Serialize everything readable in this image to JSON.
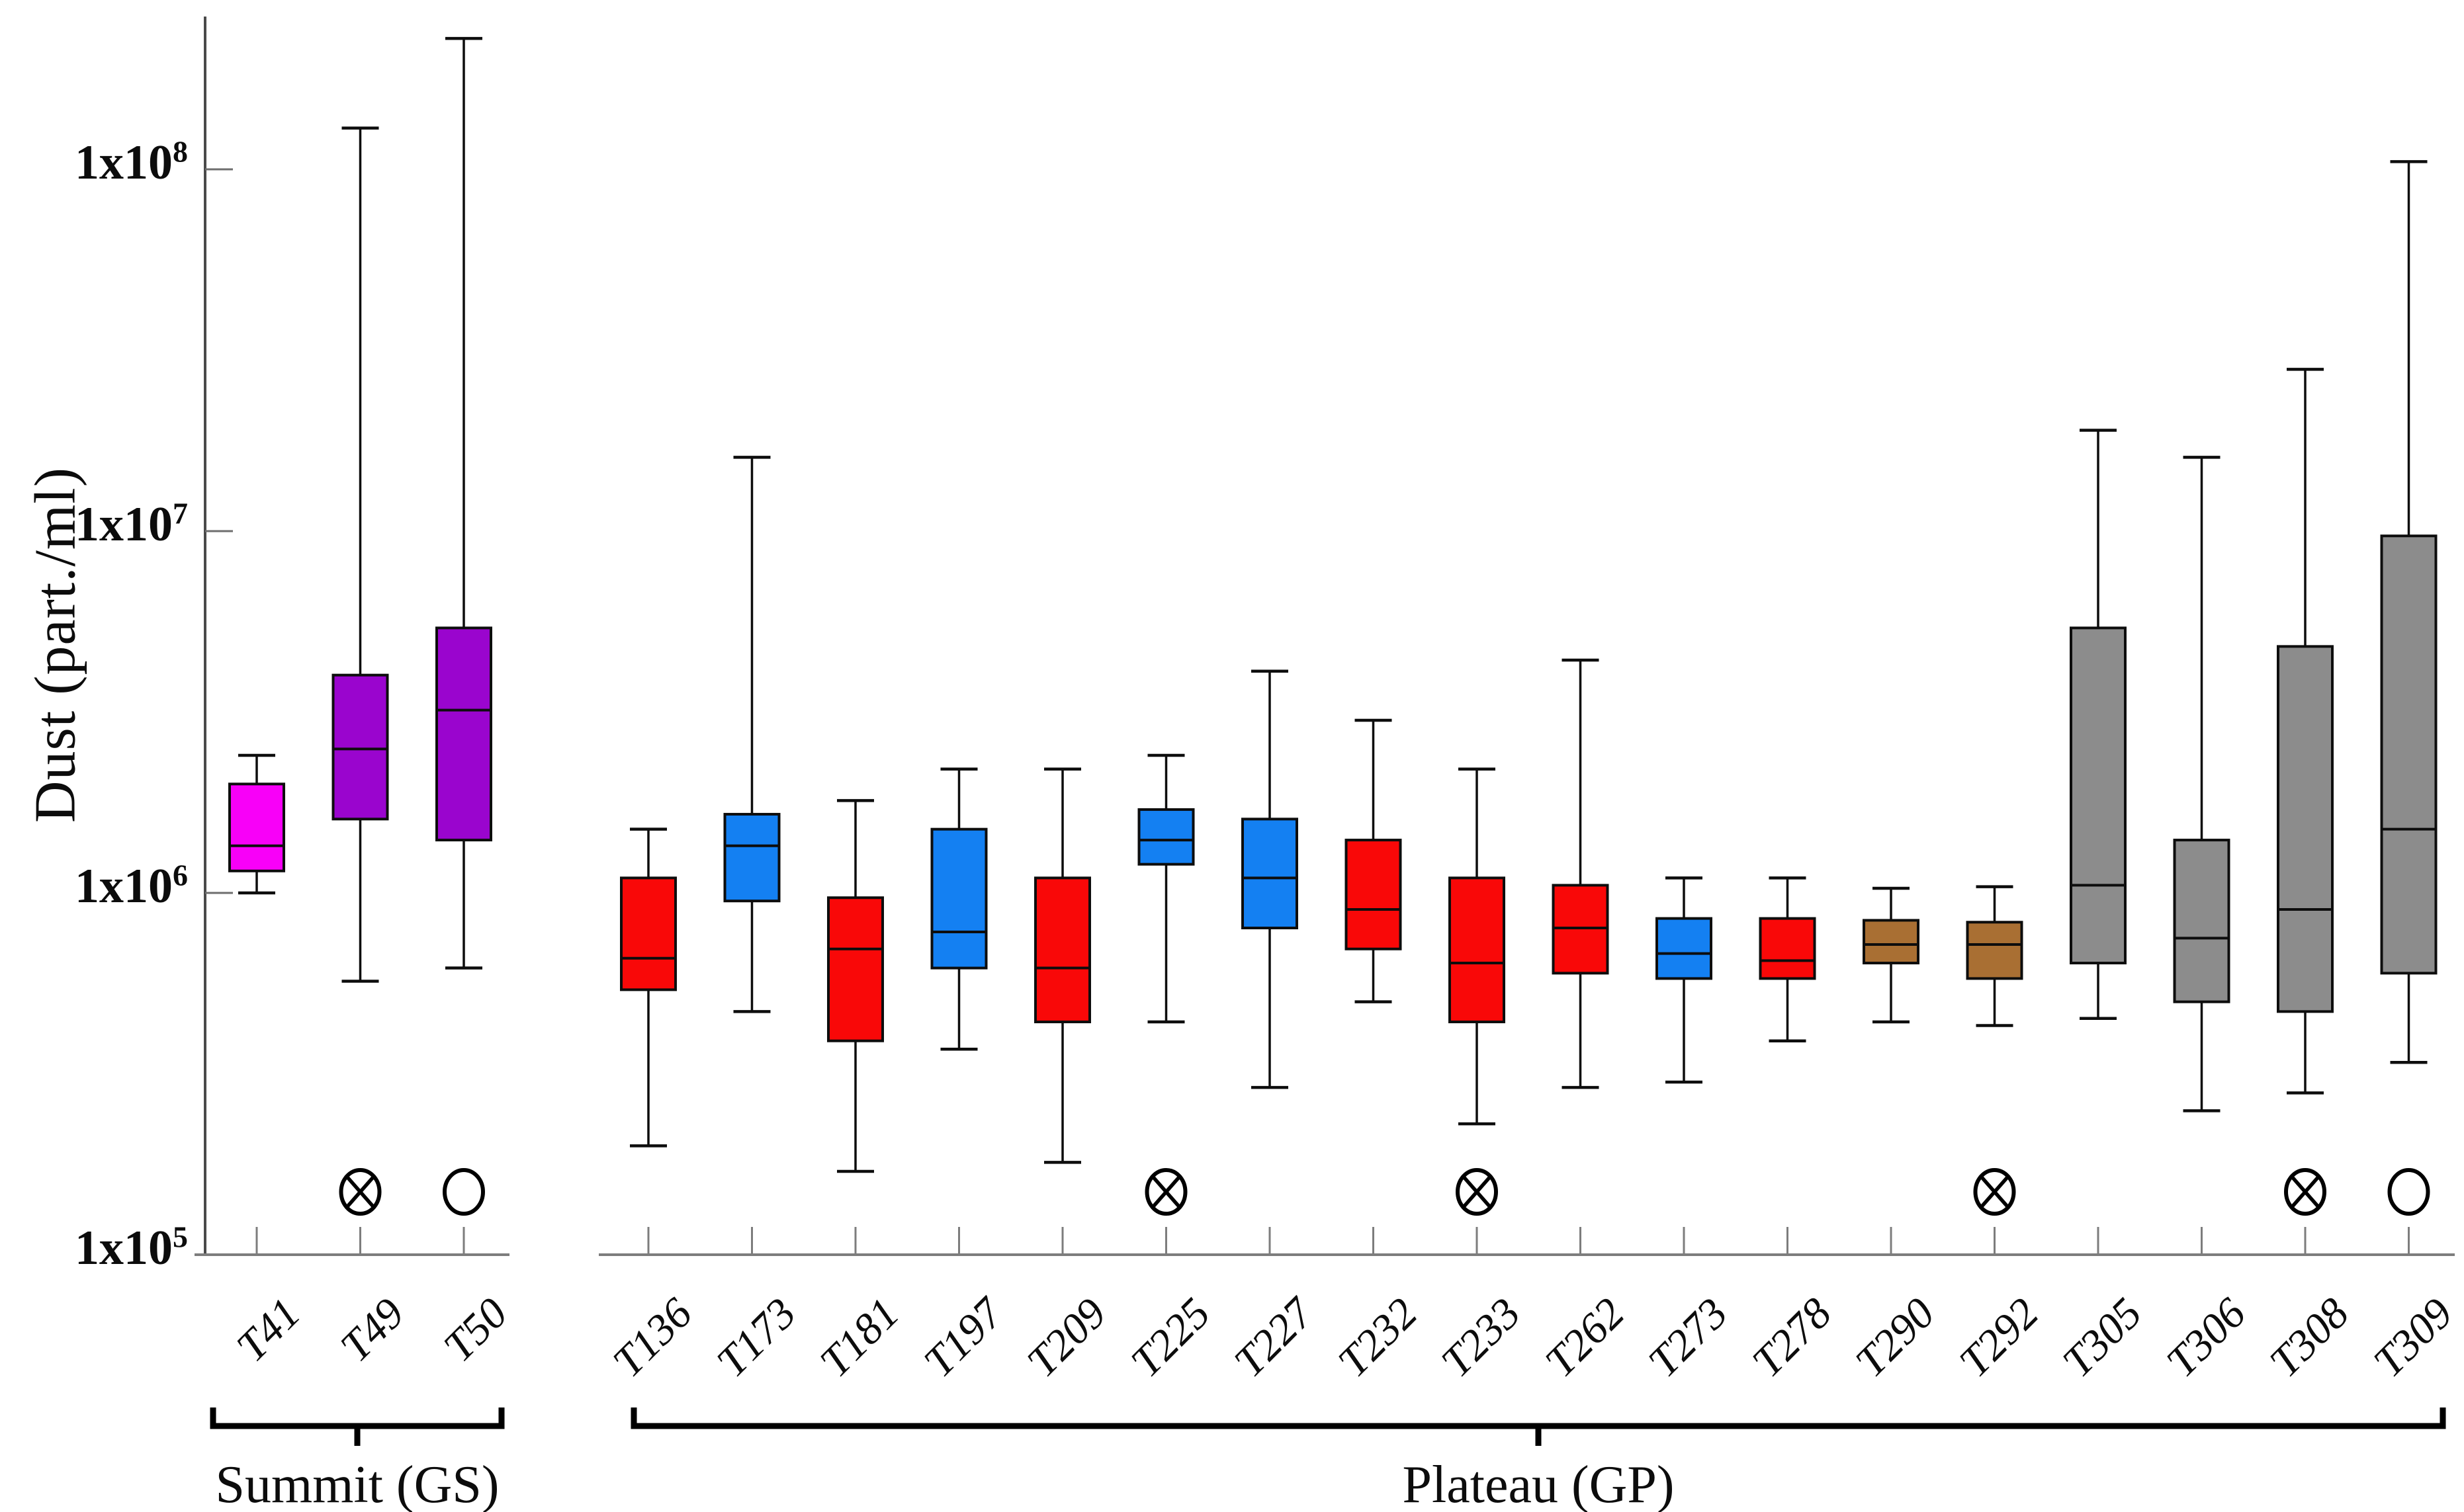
{
  "figure": {
    "background": "#ffffff"
  },
  "chart_data": {
    "type": "box",
    "title": "",
    "xlabel": "",
    "ylabel": "Dust (part./ml)",
    "yscale": "log",
    "ylim": [
      100000,
      300000000
    ],
    "grid": false,
    "legend": null,
    "yticks": [
      {
        "mantissa": "1x10",
        "exponent": "5",
        "value": 100000
      },
      {
        "mantissa": "1x10",
        "exponent": "6",
        "value": 1000000
      },
      {
        "mantissa": "1x10",
        "exponent": "7",
        "value": 10000000
      },
      {
        "mantissa": "1x10",
        "exponent": "8",
        "value": 100000000
      }
    ],
    "series_colors": {
      "magenta": "#F800F8",
      "purple": "#9A05CE",
      "blue": "#1480F2",
      "red": "#F90808",
      "brown": "#A96F33",
      "gray": "#8C8C8C"
    },
    "marker_glyphs": {
      "circle-x": "circle-with-x-marker",
      "circle": "open-circle-marker"
    },
    "groups": [
      {
        "id": "GS",
        "name": "Summit (GS)",
        "members": [
          "T41",
          "T49",
          "T50"
        ]
      },
      {
        "id": "GP",
        "name": "Plateau (GP)",
        "members": [
          "T136",
          "T173",
          "T181",
          "T197",
          "T209",
          "T225",
          "T227",
          "T232",
          "T233",
          "T262",
          "T273",
          "T278",
          "T290",
          "T292",
          "T305",
          "T306",
          "T308",
          "T309"
        ]
      }
    ],
    "boxes": [
      {
        "label": "T41",
        "group": "GS",
        "color": "magenta",
        "whisker_low": 1000000,
        "q1": 1150000,
        "median": 1350000,
        "q3": 2000000,
        "whisker_high": 2400000,
        "marker": null
      },
      {
        "label": "T49",
        "group": "GS",
        "color": "purple",
        "whisker_low": 570000,
        "q1": 1600000,
        "median": 2500000,
        "q3": 4000000,
        "whisker_high": 130000000,
        "marker": "circle-x"
      },
      {
        "label": "T50",
        "group": "GS",
        "color": "purple",
        "whisker_low": 620000,
        "q1": 1400000,
        "median": 3200000,
        "q3": 5400000,
        "whisker_high": 230000000,
        "marker": "circle"
      },
      {
        "label": "T136",
        "group": "GP",
        "color": "red",
        "whisker_low": 200000,
        "q1": 540000,
        "median": 660000,
        "q3": 1100000,
        "whisker_high": 1500000,
        "marker": null
      },
      {
        "label": "T173",
        "group": "GP",
        "color": "blue",
        "whisker_low": 470000,
        "q1": 950000,
        "median": 1350000,
        "q3": 1650000,
        "whisker_high": 16000000,
        "marker": null
      },
      {
        "label": "T181",
        "group": "GP",
        "color": "red",
        "whisker_low": 170000,
        "q1": 390000,
        "median": 700000,
        "q3": 970000,
        "whisker_high": 1800000,
        "marker": null
      },
      {
        "label": "T197",
        "group": "GP",
        "color": "blue",
        "whisker_low": 370000,
        "q1": 620000,
        "median": 780000,
        "q3": 1500000,
        "whisker_high": 2200000,
        "marker": null
      },
      {
        "label": "T209",
        "group": "GP",
        "color": "red",
        "whisker_low": 180000,
        "q1": 440000,
        "median": 620000,
        "q3": 1100000,
        "whisker_high": 2200000,
        "marker": null
      },
      {
        "label": "T225",
        "group": "GP",
        "color": "blue",
        "whisker_low": 440000,
        "q1": 1200000,
        "median": 1400000,
        "q3": 1700000,
        "whisker_high": 2400000,
        "marker": "circle-x"
      },
      {
        "label": "T227",
        "group": "GP",
        "color": "blue",
        "whisker_low": 290000,
        "q1": 800000,
        "median": 1100000,
        "q3": 1600000,
        "whisker_high": 4100000,
        "marker": null
      },
      {
        "label": "T232",
        "group": "GP",
        "color": "red",
        "whisker_low": 500000,
        "q1": 700000,
        "median": 900000,
        "q3": 1400000,
        "whisker_high": 3000000,
        "marker": null
      },
      {
        "label": "T233",
        "group": "GP",
        "color": "red",
        "whisker_low": 230000,
        "q1": 440000,
        "median": 640000,
        "q3": 1100000,
        "whisker_high": 2200000,
        "marker": "circle-x"
      },
      {
        "label": "T262",
        "group": "GP",
        "color": "red",
        "whisker_low": 290000,
        "q1": 600000,
        "median": 800000,
        "q3": 1050000,
        "whisker_high": 4400000,
        "marker": null
      },
      {
        "label": "T273",
        "group": "GP",
        "color": "blue",
        "whisker_low": 300000,
        "q1": 580000,
        "median": 680000,
        "q3": 850000,
        "whisker_high": 1100000,
        "marker": null
      },
      {
        "label": "T278",
        "group": "GP",
        "color": "red",
        "whisker_low": 390000,
        "q1": 580000,
        "median": 650000,
        "q3": 850000,
        "whisker_high": 1100000,
        "marker": null
      },
      {
        "label": "T290",
        "group": "GP",
        "color": "brown",
        "whisker_low": 440000,
        "q1": 640000,
        "median": 720000,
        "q3": 840000,
        "whisker_high": 1030000,
        "marker": null
      },
      {
        "label": "T292",
        "group": "GP",
        "color": "brown",
        "whisker_low": 430000,
        "q1": 580000,
        "median": 720000,
        "q3": 830000,
        "whisker_high": 1040000,
        "marker": "circle-x"
      },
      {
        "label": "T305",
        "group": "GP",
        "color": "gray",
        "whisker_low": 450000,
        "q1": 640000,
        "median": 1050000,
        "q3": 5400000,
        "whisker_high": 19000000,
        "marker": null
      },
      {
        "label": "T306",
        "group": "GP",
        "color": "gray",
        "whisker_low": 250000,
        "q1": 500000,
        "median": 750000,
        "q3": 1400000,
        "whisker_high": 16000000,
        "marker": null
      },
      {
        "label": "T308",
        "group": "GP",
        "color": "gray",
        "whisker_low": 280000,
        "q1": 470000,
        "median": 900000,
        "q3": 4800000,
        "whisker_high": 28000000,
        "marker": "circle-x"
      },
      {
        "label": "T309",
        "group": "GP",
        "color": "gray",
        "whisker_low": 340000,
        "q1": 600000,
        "median": 1500000,
        "q3": 9700000,
        "whisker_high": 105000000,
        "marker": "circle"
      }
    ]
  }
}
